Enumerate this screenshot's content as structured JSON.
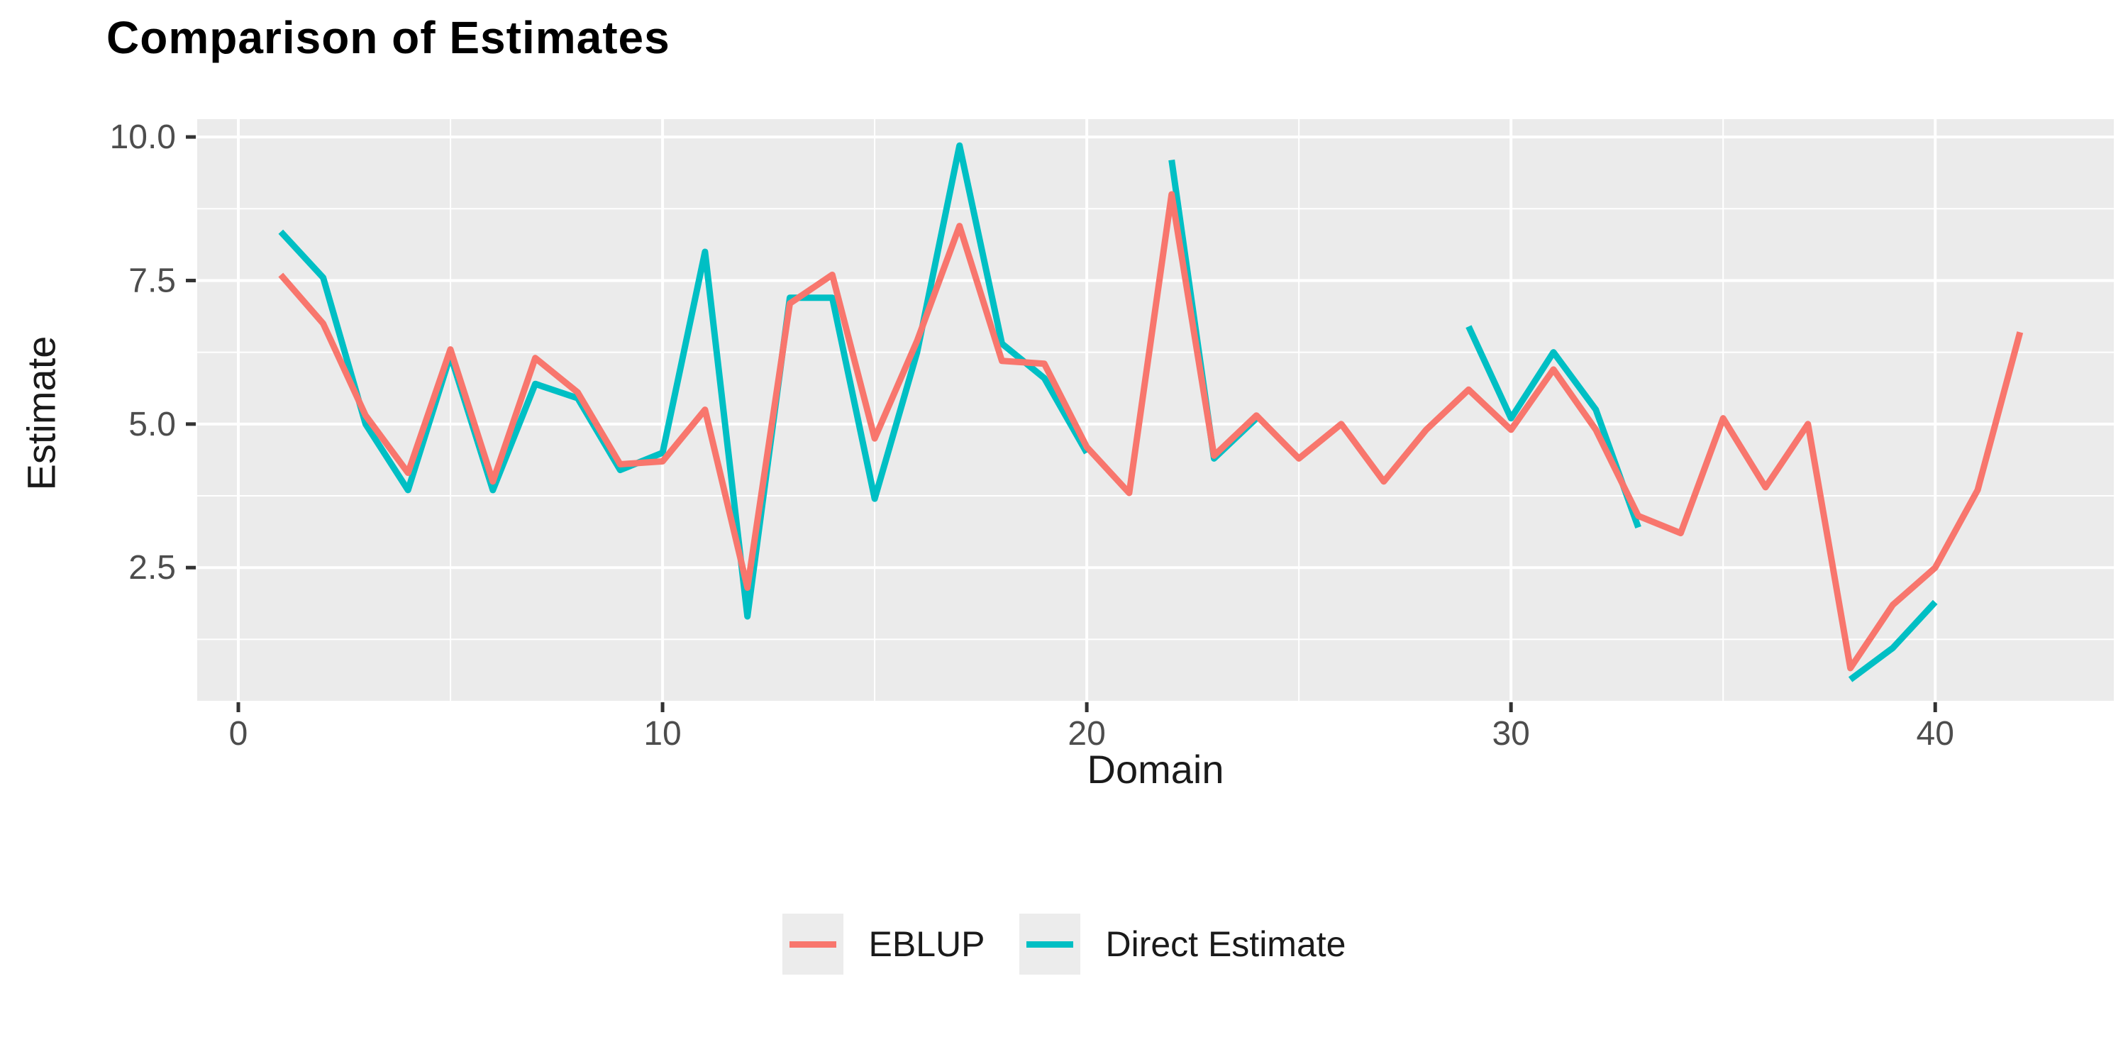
{
  "title": "Comparison of Estimates",
  "colors": {
    "eblup": "#F8766D",
    "direct": "#00BFC4",
    "panel_bg": "#EBEBEB",
    "grid": "#FFFFFF",
    "tick_label": "#4D4D4D",
    "tick_mark": "#333333",
    "title_color": "#000000",
    "axis_title_color": "#1a1a1a",
    "legend_key_bg": "#ECECEC",
    "legend_text": "#1a1a1a",
    "page_bg": "#FFFFFF"
  },
  "chart_data": {
    "type": "line",
    "title": "Comparison of Estimates",
    "xlabel": "Domain",
    "ylabel": "Estimate",
    "x_domain_start": 1,
    "xlim": [
      -0.97,
      44.21
    ],
    "ylim": [
      0.18,
      10.31
    ],
    "grid": "on",
    "legend_position": "bottom",
    "x_major_ticks": [
      0,
      10,
      20,
      30,
      40
    ],
    "x_major_tick_labels": [
      "0",
      "10",
      "20",
      "30",
      "40"
    ],
    "x_minor_ticks": [
      5,
      15,
      25,
      35
    ],
    "y_major_ticks": [
      2.5,
      5.0,
      7.5,
      10.0
    ],
    "y_major_tick_labels": [
      "2.5",
      "5.0",
      "7.5",
      "10.0"
    ],
    "y_minor_ticks": [
      1.25,
      3.75,
      6.25,
      8.75
    ],
    "series": [
      {
        "name": "EBLUP",
        "color_key": "eblup",
        "values": [
          7.6,
          6.75,
          5.15,
          4.15,
          6.3,
          4.0,
          6.15,
          5.55,
          4.3,
          4.35,
          5.25,
          2.15,
          7.1,
          7.6,
          4.75,
          6.45,
          8.45,
          6.1,
          6.05,
          4.6,
          3.8,
          9.0,
          4.45,
          5.15,
          4.4,
          5.0,
          4.0,
          4.9,
          5.6,
          4.9,
          5.95,
          4.9,
          3.4,
          3.1,
          5.1,
          3.9,
          5.0,
          0.75,
          1.85,
          2.5,
          3.85,
          6.6
        ]
      },
      {
        "name": "Direct Estimate",
        "color_key": "direct",
        "values": [
          8.35,
          7.55,
          5.0,
          3.85,
          6.2,
          3.85,
          5.7,
          5.45,
          4.2,
          4.5,
          8.0,
          1.65,
          7.2,
          7.2,
          3.7,
          6.25,
          9.85,
          6.4,
          5.8,
          4.5,
          null,
          9.6,
          4.4,
          5.1,
          null,
          null,
          null,
          null,
          6.7,
          5.1,
          6.25,
          5.25,
          3.2,
          null,
          null,
          null,
          null,
          0.55,
          1.1,
          1.9,
          null,
          null
        ]
      }
    ]
  },
  "legend": {
    "items": [
      {
        "label": "EBLUP",
        "color_key": "eblup"
      },
      {
        "label": "Direct Estimate",
        "color_key": "direct"
      }
    ]
  }
}
